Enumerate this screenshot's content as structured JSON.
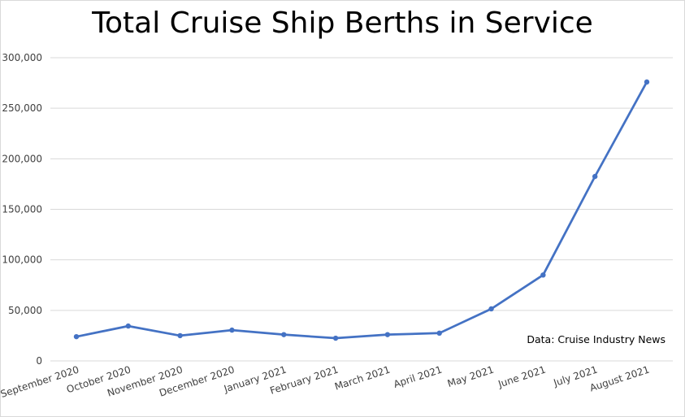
{
  "chart_data": {
    "type": "line",
    "title": "Total Cruise Ship Berths in Service",
    "xlabel": "",
    "ylabel": "",
    "categories": [
      "September 2020",
      "October 2020",
      "November 2020",
      "December 2020",
      "January 2021",
      "February 2021",
      "March 2021",
      "April 2021",
      "May 2021",
      "June 2021",
      "July 2021",
      "August 2021"
    ],
    "series": [
      {
        "values": [
          24000,
          34500,
          25000,
          30500,
          26000,
          22500,
          26000,
          27500,
          51500,
          85000,
          182500,
          276000
        ]
      }
    ],
    "ylim": [
      0,
      300000
    ],
    "yticks": [
      "0",
      "50,000",
      "100,000",
      "150,000",
      "200,000",
      "250,000",
      "300,000"
    ],
    "grid": true,
    "legend": "none",
    "annotation": "Data: Cruise Industry News",
    "line_color": "#4472c4",
    "grid_color": "#d9d9d9"
  }
}
